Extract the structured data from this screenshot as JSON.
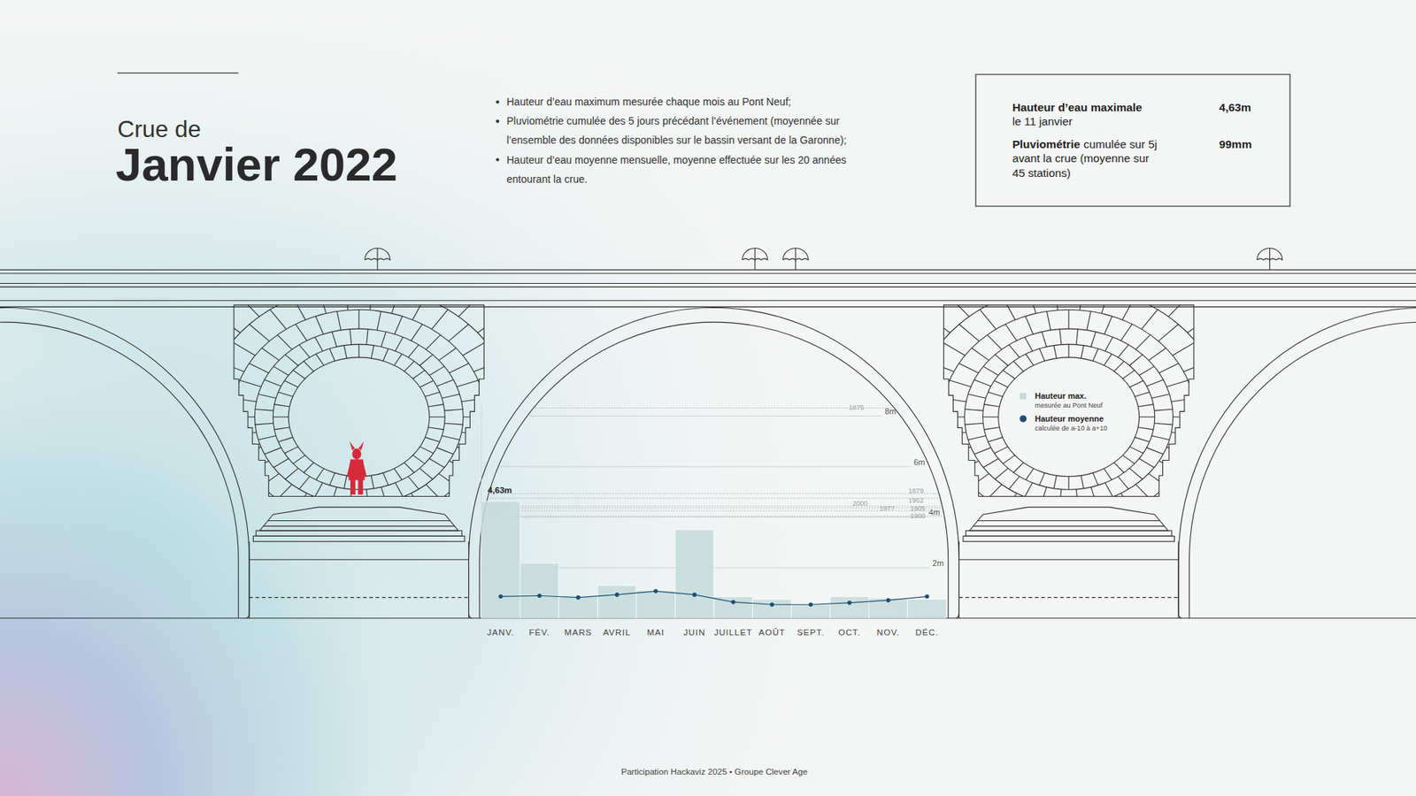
{
  "header": {
    "kicker": "Crue de",
    "title": "Janvier 2022"
  },
  "notes": [
    {
      "lines": [
        "Hauteur d’eau maximum mesurée chaque mois au Pont Neuf;"
      ]
    },
    {
      "lines": [
        "Pluviométrie cumulée des 5 jours précédant l’événement (moyennée sur",
        "l’ensemble des données disponibles sur le bassin versant de la Garonne);"
      ]
    },
    {
      "lines": [
        "Hauteur d’eau moyenne mensuelle, moyenne effectuée sur les 20 années",
        "entourant la crue."
      ]
    }
  ],
  "summary": [
    {
      "label": "Hauteur d’eau maximale",
      "detail_lines": [
        "le 11 janvier"
      ],
      "value": "4,63m"
    },
    {
      "label": "Pluviométrie",
      "label_suffix": "cumulée sur 5j",
      "detail_lines": [
        "avant la crue (moyenne sur",
        "45 stations)"
      ],
      "value": "99mm"
    }
  ],
  "chart_data": {
    "type": "bar",
    "categories": [
      "JANV.",
      "FÉV.",
      "MARS",
      "AVRIL",
      "MAI",
      "JUIN",
      "JUILLET",
      "AOÛT",
      "SEPT.",
      "OCT.",
      "NOV.",
      "DÉC."
    ],
    "series": [
      {
        "name": "Hauteur max.",
        "description": "mesurée au Pont Neuf",
        "type": "bar",
        "color": "#c6dadb",
        "values": [
          4.63,
          2.18,
          0.85,
          1.3,
          1.1,
          3.5,
          0.85,
          0.75,
          0.55,
          0.85,
          0.8,
          0.75
        ]
      },
      {
        "name": "Hauteur moyenne",
        "description": "calculée de a-10 à a+10",
        "type": "line",
        "color": "#1d4f73",
        "marker": "circle",
        "values": [
          0.86,
          0.89,
          0.82,
          0.93,
          1.07,
          0.93,
          0.64,
          0.54,
          0.54,
          0.61,
          0.71,
          0.86
        ]
      }
    ],
    "ylim": [
      0,
      8.5
    ],
    "yticks": [
      {
        "value": 2,
        "label": "2m"
      },
      {
        "value": 4,
        "label": "4m"
      },
      {
        "value": 6,
        "label": "6m"
      },
      {
        "value": 8,
        "label": "8m"
      }
    ],
    "grid": true,
    "annotations": [
      {
        "text": "4,63m",
        "category": "JANV.",
        "value": 4.63
      }
    ],
    "reference_lines": [
      {
        "label": "1875",
        "value": 8.32
      },
      {
        "label": "1879",
        "value": 4.93
      },
      {
        "label": "1952",
        "value": 4.75
      },
      {
        "label": "2000",
        "value": 4.43
      },
      {
        "label": "1977",
        "value": 4.36
      },
      {
        "label": "1905",
        "value": 4.25
      },
      {
        "label": "1900",
        "value": 4.04
      }
    ]
  },
  "footer": "Participation Hackaviz 2025 • Groupe Clever Age"
}
